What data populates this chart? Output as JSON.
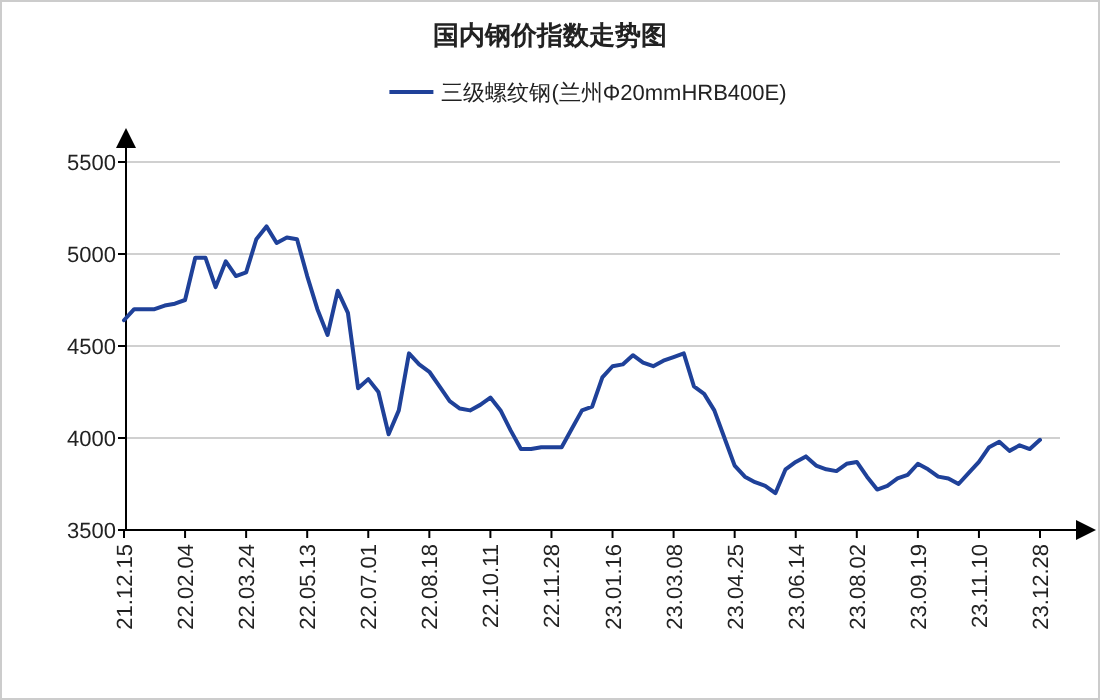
{
  "chart_data": {
    "type": "line",
    "title": "国内钢价指数走势图",
    "categories": [
      "21.12.15",
      null,
      null,
      null,
      null,
      null,
      "22.02.04",
      null,
      null,
      null,
      null,
      null,
      "22.03.24",
      null,
      null,
      null,
      null,
      null,
      "22.05.13",
      null,
      null,
      null,
      null,
      null,
      "22.07.01",
      null,
      null,
      null,
      null,
      null,
      "22.08.18",
      null,
      null,
      null,
      null,
      null,
      "22.10.11",
      null,
      null,
      null,
      null,
      null,
      "22.11.28",
      null,
      null,
      null,
      null,
      null,
      "23.01.16",
      null,
      null,
      null,
      null,
      null,
      "23.03.08",
      null,
      null,
      null,
      null,
      null,
      "23.04.25",
      null,
      null,
      null,
      null,
      null,
      "23.06.14",
      null,
      null,
      null,
      null,
      null,
      "23.08.02",
      null,
      null,
      null,
      null,
      null,
      "23.09.19",
      null,
      null,
      null,
      null,
      null,
      "23.11.10",
      null,
      null,
      null,
      null,
      null,
      "23.12.28"
    ],
    "series": [
      {
        "name": "三级螺纹钢(兰州Φ20mmHRB400E)",
        "color": "#1f4199",
        "values": [
          4640,
          4700,
          4700,
          4700,
          4720,
          4730,
          4750,
          4980,
          4980,
          4820,
          4960,
          4880,
          4900,
          5080,
          5150,
          5060,
          5090,
          5080,
          4880,
          4700,
          4560,
          4800,
          4680,
          4270,
          4320,
          4250,
          4020,
          4150,
          4460,
          4400,
          4360,
          4280,
          4200,
          4160,
          4150,
          4180,
          4220,
          4150,
          4040,
          3940,
          3940,
          3950,
          3950,
          3950,
          4050,
          4150,
          4170,
          4330,
          4390,
          4400,
          4450,
          4410,
          4390,
          4420,
          4440,
          4460,
          4280,
          4240,
          4150,
          4000,
          3850,
          3790,
          3760,
          3740,
          3700,
          3830,
          3870,
          3900,
          3850,
          3830,
          3820,
          3860,
          3870,
          3790,
          3720,
          3740,
          3780,
          3800,
          3860,
          3830,
          3790,
          3780,
          3750,
          3810,
          3870,
          3950,
          3980,
          3930,
          3960,
          3940,
          3990
        ]
      }
    ],
    "ylim": [
      3500,
      5500
    ],
    "yticks": [
      3500,
      4000,
      4500,
      5000,
      5500
    ],
    "grid": "y",
    "legend": "top",
    "marker": "none",
    "line_style": "solid"
  }
}
